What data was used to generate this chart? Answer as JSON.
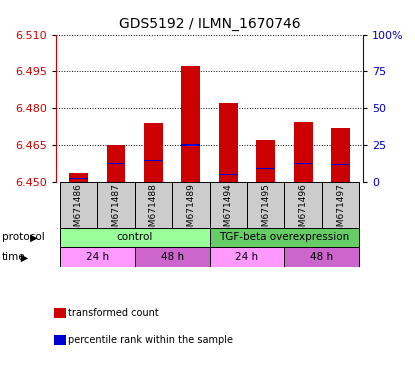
{
  "title": "GDS5192 / ILMN_1670746",
  "samples": [
    "GSM671486",
    "GSM671487",
    "GSM671488",
    "GSM671489",
    "GSM671494",
    "GSM671495",
    "GSM671496",
    "GSM671497"
  ],
  "red_values": [
    6.4535,
    6.465,
    6.474,
    6.497,
    6.482,
    6.467,
    6.4745,
    6.472
  ],
  "blue_values": [
    6.4512,
    6.4575,
    6.4585,
    6.465,
    6.453,
    6.4555,
    6.4575,
    6.457
  ],
  "ymin": 6.45,
  "ymax": 6.51,
  "yticks": [
    6.45,
    6.465,
    6.48,
    6.495,
    6.51
  ],
  "y2min": 0,
  "y2max": 100,
  "y2ticks": [
    0,
    25,
    50,
    75,
    100
  ],
  "y2ticklabels": [
    "0",
    "25",
    "50",
    "75",
    "100%"
  ],
  "bar_color": "#cc0000",
  "blue_color": "#0000cc",
  "bar_width": 0.5,
  "protocol_control_color": "#99ff99",
  "protocol_tgf_color": "#66cc66",
  "time_24h_color": "#ff99ff",
  "time_48h_color": "#cc66cc",
  "protocol_groups": [
    {
      "label": "control",
      "start": 0,
      "end": 4
    },
    {
      "label": "TGF-beta overexpression",
      "start": 4,
      "end": 8
    }
  ],
  "time_groups": [
    {
      "label": "24 h",
      "start": 0,
      "end": 2
    },
    {
      "label": "48 h",
      "start": 2,
      "end": 4
    },
    {
      "label": "24 h",
      "start": 4,
      "end": 6
    },
    {
      "label": "48 h",
      "start": 6,
      "end": 8
    }
  ],
  "legend_items": [
    {
      "color": "#cc0000",
      "label": "transformed count"
    },
    {
      "color": "#0000cc",
      "label": "percentile rank within the sample"
    }
  ],
  "xlabel_color": "#cc0000",
  "y2label_color": "#0000cc",
  "grid_color": "#000000",
  "grid_linestyle": ":"
}
